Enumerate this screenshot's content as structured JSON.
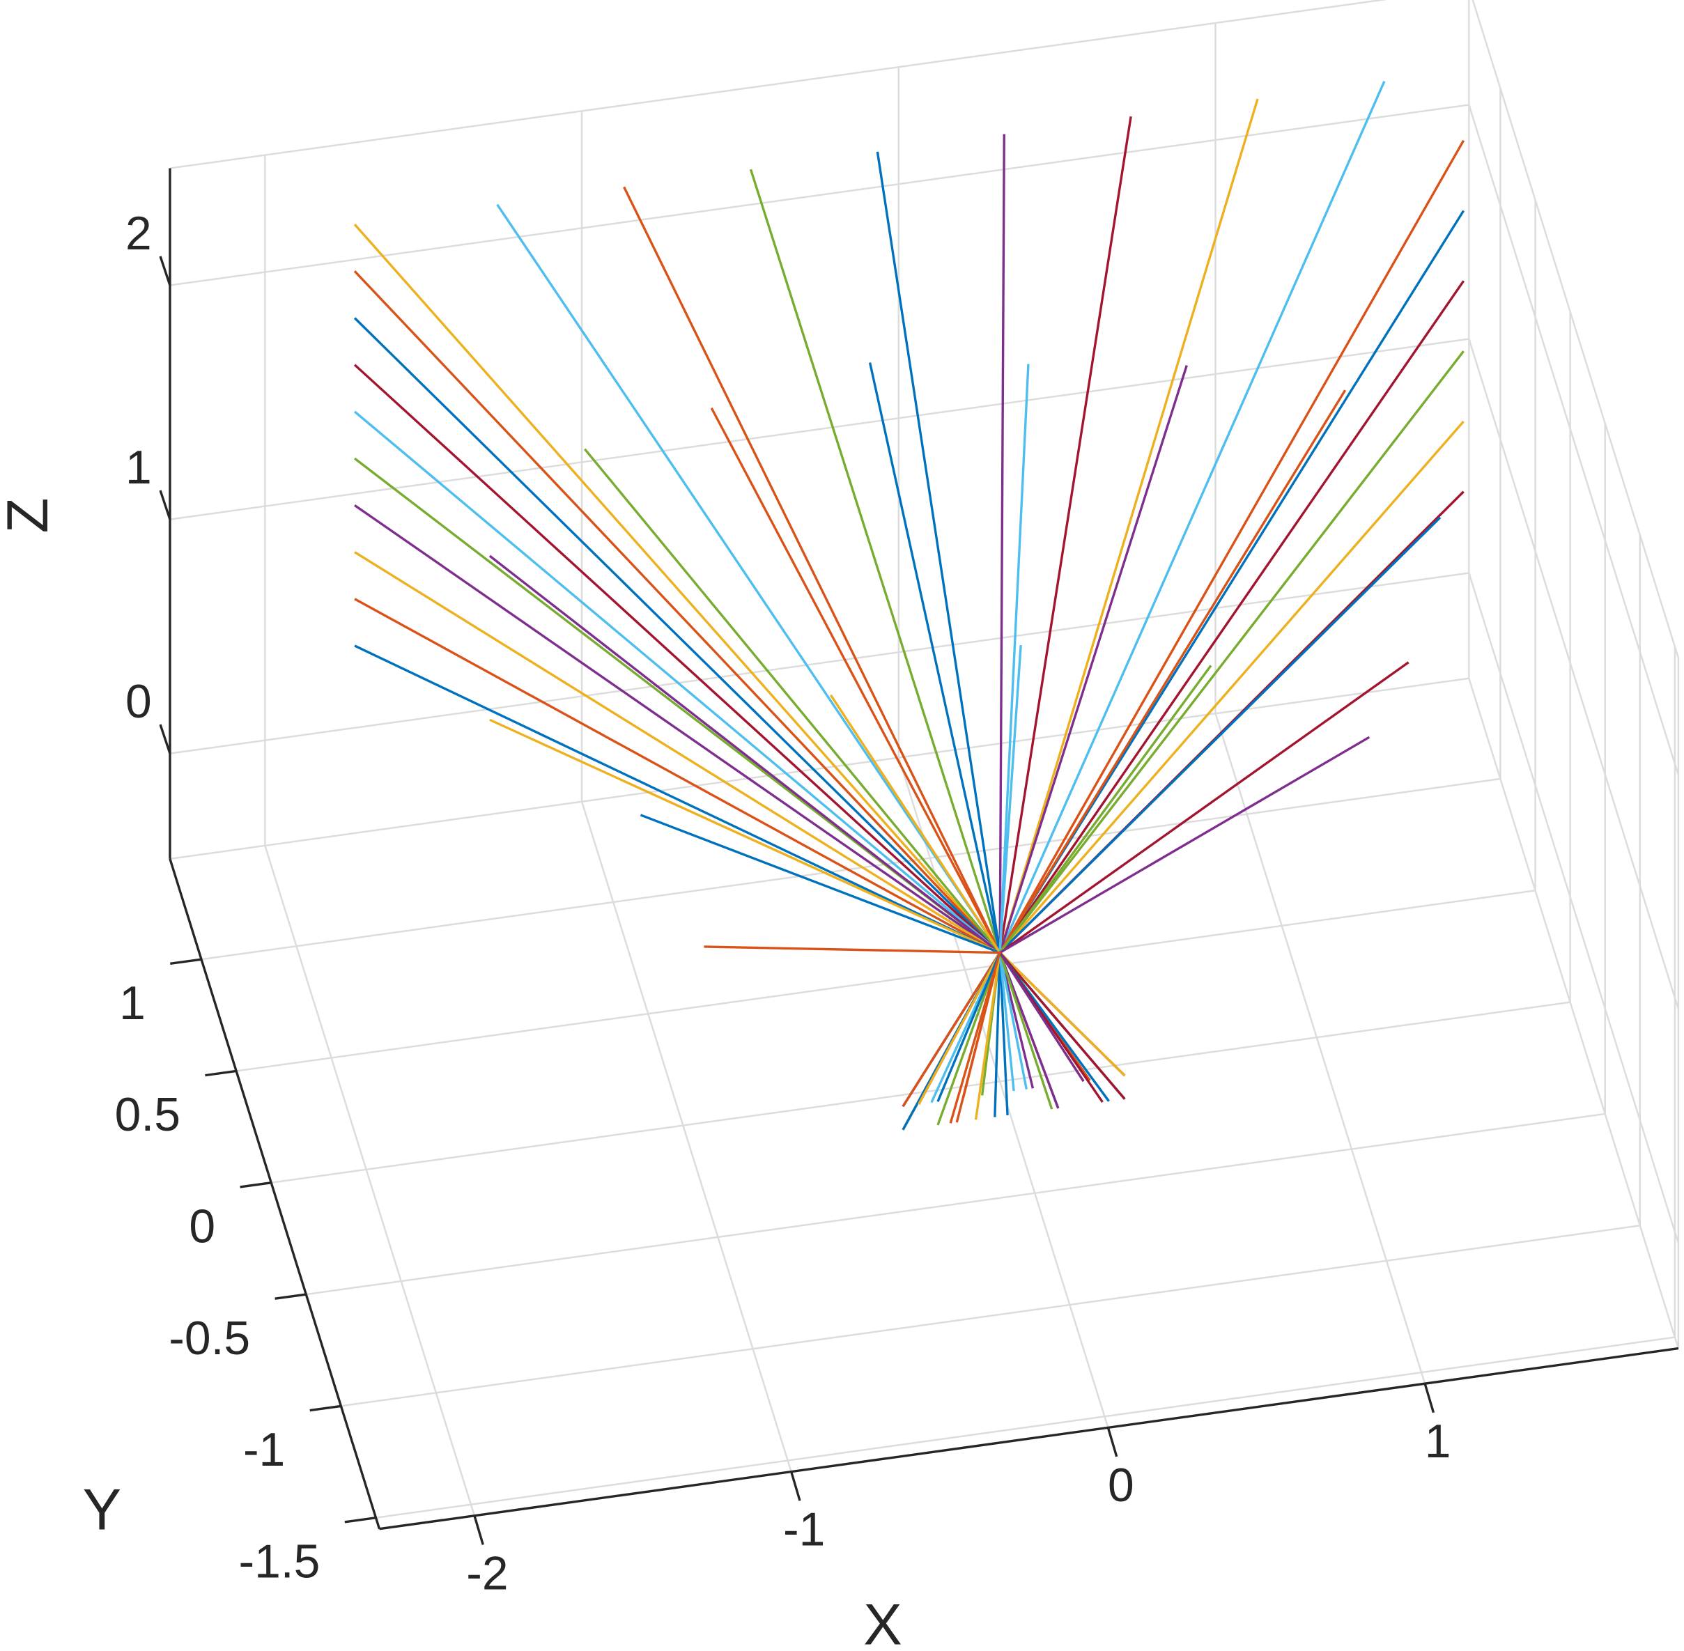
{
  "chart_data": {
    "type": "line3d",
    "xlabel": "X",
    "ylabel": "Y",
    "zlabel": "Z",
    "xlim": [
      -2.3,
      1.8
    ],
    "ylim": [
      -1.55,
      1.45
    ],
    "zlim": [
      -0.45,
      2.5
    ],
    "xticks": [
      -2,
      -1,
      0,
      1
    ],
    "yticks": [
      -1.5,
      -1,
      -0.5,
      0,
      0.5,
      1
    ],
    "zticks": [
      0,
      1,
      2
    ],
    "grid": true,
    "series": [
      {
        "color": "#edb120",
        "x": [
          -0.35,
          0,
          -1.75
        ],
        "y": [
          -0.2,
          0,
          1.3
        ],
        "z": [
          -0.3,
          0.1,
          2.3
        ]
      },
      {
        "color": "#d95319",
        "x": [
          -0.35,
          0,
          -1.75
        ],
        "y": [
          -0.2,
          0,
          1.3
        ],
        "z": [
          -0.4,
          0.1,
          2.1
        ]
      },
      {
        "color": "#0072bd",
        "x": [
          -0.35,
          0,
          -1.75
        ],
        "y": [
          -0.2,
          0,
          1.3
        ],
        "z": [
          -0.3,
          0.1,
          1.9
        ]
      },
      {
        "color": "#a2142f",
        "x": [
          -0.35,
          0,
          -1.75
        ],
        "y": [
          -0.2,
          0,
          1.3
        ],
        "z": [
          -0.4,
          0.1,
          1.7
        ]
      },
      {
        "color": "#4dbeee",
        "x": [
          -0.35,
          0,
          -1.75
        ],
        "y": [
          -0.2,
          0,
          1.3
        ],
        "z": [
          -0.3,
          0.1,
          1.5
        ]
      },
      {
        "color": "#77ac30",
        "x": [
          -0.35,
          0,
          -1.75
        ],
        "y": [
          -0.2,
          0,
          1.3
        ],
        "z": [
          -0.4,
          0.1,
          1.3
        ]
      },
      {
        "color": "#7e2f8e",
        "x": [
          -0.35,
          0,
          -1.75
        ],
        "y": [
          -0.2,
          0,
          1.3
        ],
        "z": [
          -0.3,
          0.1,
          1.1
        ]
      },
      {
        "color": "#edb120",
        "x": [
          -0.35,
          0,
          -1.75
        ],
        "y": [
          -0.2,
          0,
          1.3
        ],
        "z": [
          -0.4,
          0.1,
          0.9
        ]
      },
      {
        "color": "#d95319",
        "x": [
          -0.35,
          0,
          -1.75
        ],
        "y": [
          -0.2,
          0,
          1.3
        ],
        "z": [
          -0.3,
          0.1,
          0.7
        ]
      },
      {
        "color": "#0072bd",
        "x": [
          -0.35,
          0,
          -1.75
        ],
        "y": [
          -0.2,
          0,
          1.3
        ],
        "z": [
          -0.4,
          0.1,
          0.5
        ]
      },
      {
        "color": "#4dbeee",
        "x": [
          -0.26,
          0,
          -1.3
        ],
        "y": [
          -0.2,
          0,
          1.3
        ],
        "z": [
          -0.3,
          0.1,
          2.3
        ]
      },
      {
        "color": "#d95319",
        "x": [
          -0.18,
          0,
          -0.9
        ],
        "y": [
          -0.2,
          0,
          1.3
        ],
        "z": [
          -0.4,
          0.1,
          2.3
        ]
      },
      {
        "color": "#77ac30",
        "x": [
          -0.1,
          0,
          -0.5
        ],
        "y": [
          -0.2,
          0,
          1.3
        ],
        "z": [
          -0.3,
          0.1,
          2.3
        ]
      },
      {
        "color": "#0072bd",
        "x": [
          -0.02,
          0,
          -0.1
        ],
        "y": [
          -0.2,
          0,
          1.3
        ],
        "z": [
          -0.4,
          0.1,
          2.3
        ]
      },
      {
        "color": "#7e2f8e",
        "x": [
          0.06,
          0,
          0.3
        ],
        "y": [
          -0.2,
          0,
          1.3
        ],
        "z": [
          -0.3,
          0.1,
          2.3
        ]
      },
      {
        "color": "#a2142f",
        "x": [
          0.14,
          0,
          0.7
        ],
        "y": [
          -0.2,
          0,
          1.3
        ],
        "z": [
          -0.4,
          0.1,
          2.3
        ]
      },
      {
        "color": "#edb120",
        "x": [
          0.22,
          0,
          1.1
        ],
        "y": [
          -0.2,
          0,
          1.3
        ],
        "z": [
          -0.3,
          0.1,
          2.3
        ]
      },
      {
        "color": "#4dbeee",
        "x": [
          0.3,
          0,
          1.5
        ],
        "y": [
          -0.2,
          0,
          1.3
        ],
        "z": [
          -0.4,
          0.1,
          2.3
        ]
      },
      {
        "color": "#d95319",
        "x": [
          0.35,
          0,
          1.75
        ],
        "y": [
          -0.2,
          0,
          1.3
        ],
        "z": [
          -0.3,
          0.1,
          2.0
        ]
      },
      {
        "color": "#0072bd",
        "x": [
          0.35,
          0,
          1.75
        ],
        "y": [
          -0.2,
          0,
          1.3
        ],
        "z": [
          -0.4,
          0.1,
          1.7
        ]
      },
      {
        "color": "#a2142f",
        "x": [
          0.35,
          0,
          1.75
        ],
        "y": [
          -0.2,
          0,
          1.3
        ],
        "z": [
          -0.3,
          0.1,
          1.4
        ]
      },
      {
        "color": "#77ac30",
        "x": [
          0.35,
          0,
          1.75
        ],
        "y": [
          -0.2,
          0,
          1.3
        ],
        "z": [
          -0.4,
          0.1,
          1.1
        ]
      },
      {
        "color": "#edb120",
        "x": [
          0.35,
          0,
          1.75
        ],
        "y": [
          -0.2,
          0,
          1.3
        ],
        "z": [
          -0.3,
          0.1,
          0.8
        ]
      },
      {
        "color": "#a2142f",
        "x": [
          0.35,
          0,
          1.75
        ],
        "y": [
          -0.2,
          0,
          1.3
        ],
        "z": [
          -0.4,
          0.1,
          0.5
        ]
      },
      {
        "color": "#7e2f8e",
        "x": [
          -0.3,
          0,
          -1.5
        ],
        "y": [
          -0.2,
          0,
          0.5
        ],
        "z": [
          -0.3,
          0.1,
          1.6
        ]
      },
      {
        "color": "#77ac30",
        "x": [
          -0.24,
          0,
          -1.2
        ],
        "y": [
          -0.2,
          0,
          0.5
        ],
        "z": [
          -0.4,
          0.1,
          2.0
        ]
      },
      {
        "color": "#d95319",
        "x": [
          -0.16,
          0,
          -0.8
        ],
        "y": [
          -0.2,
          0,
          0.5
        ],
        "z": [
          -0.3,
          0.1,
          2.1
        ]
      },
      {
        "color": "#0072bd",
        "x": [
          -0.06,
          0,
          -0.3
        ],
        "y": [
          -0.2,
          0,
          0.5
        ],
        "z": [
          -0.4,
          0.1,
          2.2
        ]
      },
      {
        "color": "#4dbeee",
        "x": [
          0.04,
          0,
          0.2
        ],
        "y": [
          -0.2,
          0,
          0.5
        ],
        "z": [
          -0.3,
          0.1,
          2.1
        ]
      },
      {
        "color": "#7e2f8e",
        "x": [
          0.14,
          0,
          0.7
        ],
        "y": [
          -0.2,
          0,
          0.5
        ],
        "z": [
          -0.4,
          0.1,
          2.0
        ]
      },
      {
        "color": "#d95319",
        "x": [
          0.24,
          0,
          1.2
        ],
        "y": [
          -0.2,
          0,
          0.5
        ],
        "z": [
          -0.3,
          0.1,
          1.8
        ]
      },
      {
        "color": "#0072bd",
        "x": [
          0.3,
          0,
          1.5
        ],
        "y": [
          -0.2,
          0,
          0.5
        ],
        "z": [
          -0.4,
          0.1,
          1.2
        ]
      },
      {
        "color": "#edb120",
        "x": [
          -0.3,
          0,
          -1.5
        ],
        "y": [
          -0.2,
          0,
          0.5
        ],
        "z": [
          -0.3,
          0.1,
          0.9
        ]
      },
      {
        "color": "#a2142f",
        "x": [
          0.28,
          0,
          1.4
        ],
        "y": [
          -0.2,
          0,
          0.5
        ],
        "z": [
          -0.4,
          0.1,
          0.6
        ]
      },
      {
        "color": "#0072bd",
        "x": [
          -0.24,
          0,
          -1.2
        ],
        "y": [
          -0.2,
          0,
          -0.3
        ],
        "z": [
          -0.3,
          0.1,
          1.2
        ]
      },
      {
        "color": "#edb120",
        "x": [
          -0.12,
          0,
          -0.6
        ],
        "y": [
          -0.2,
          0,
          -0.3
        ],
        "z": [
          -0.4,
          0.1,
          1.6
        ]
      },
      {
        "color": "#4dbeee",
        "x": [
          0.0,
          0,
          0.0
        ],
        "y": [
          -0.2,
          0,
          -0.3
        ],
        "z": [
          -0.3,
          0.1,
          1.7
        ]
      },
      {
        "color": "#77ac30",
        "x": [
          0.12,
          0,
          0.6
        ],
        "y": [
          -0.2,
          0,
          -0.3
        ],
        "z": [
          -0.4,
          0.1,
          1.5
        ]
      },
      {
        "color": "#7e2f8e",
        "x": [
          0.22,
          0,
          1.1
        ],
        "y": [
          -0.2,
          0,
          -0.3
        ],
        "z": [
          -0.3,
          0.1,
          1.1
        ]
      },
      {
        "color": "#d95319",
        "x": [
          -0.2,
          0,
          -1.0
        ],
        "y": [
          -0.2,
          0,
          -0.3
        ],
        "z": [
          -0.4,
          0.1,
          0.6
        ]
      }
    ]
  }
}
